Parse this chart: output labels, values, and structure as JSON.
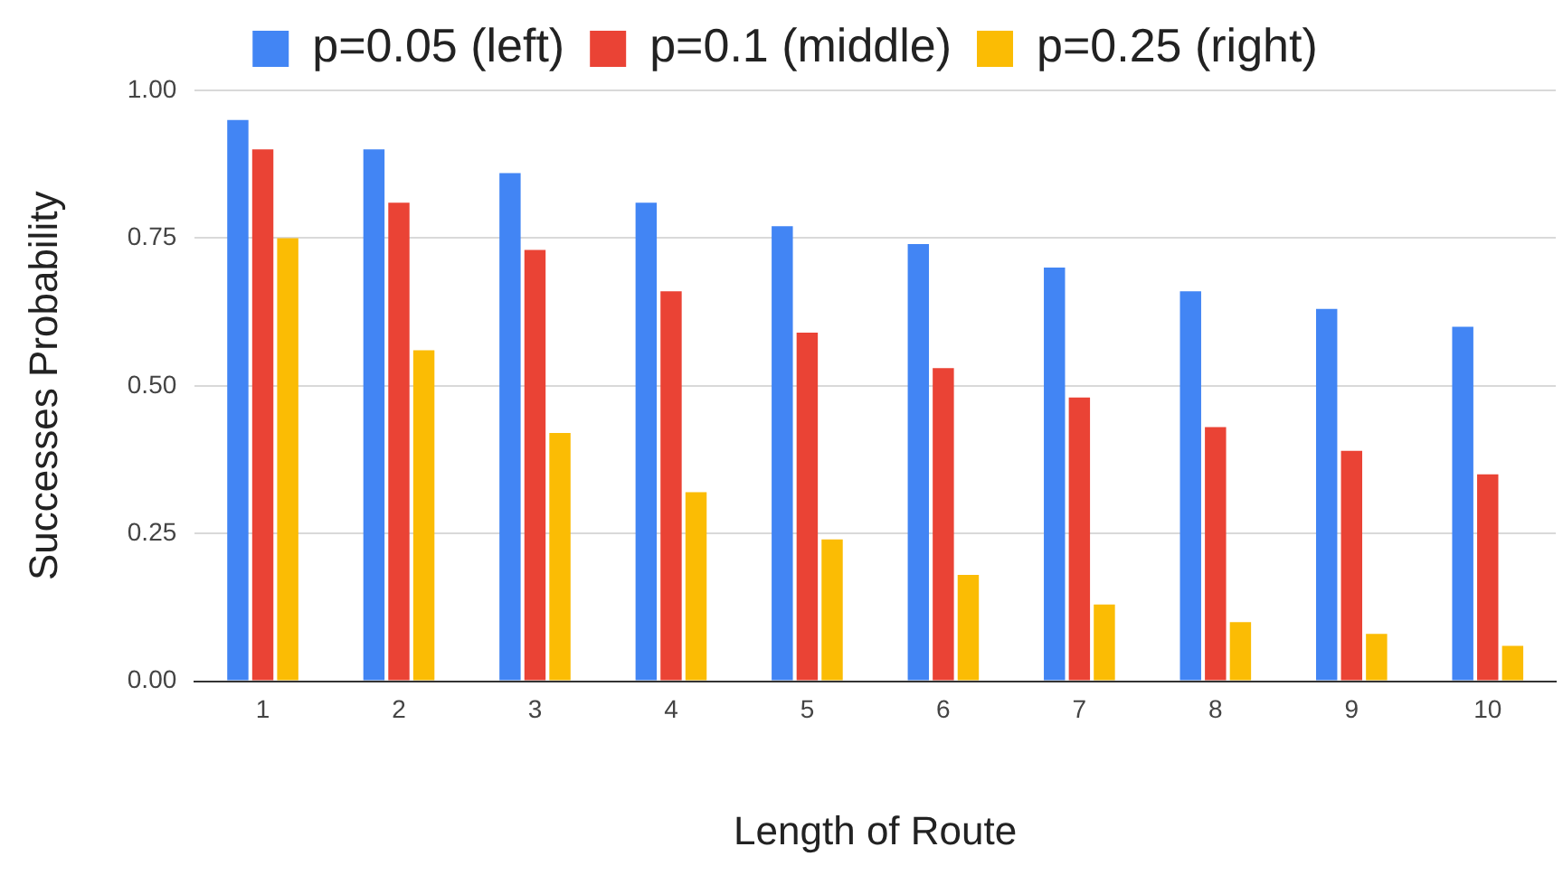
{
  "chart_data": {
    "type": "bar",
    "xlabel": "Length of Route",
    "ylabel": "Successes Probability",
    "categories": [
      "1",
      "2",
      "3",
      "4",
      "5",
      "6",
      "7",
      "8",
      "9",
      "10"
    ],
    "series": [
      {
        "name": "p=0.05 (left)",
        "color": "#4285f4",
        "values": [
          0.95,
          0.9,
          0.86,
          0.81,
          0.77,
          0.74,
          0.7,
          0.66,
          0.63,
          0.6
        ]
      },
      {
        "name": "p=0.1 (middle)",
        "color": "#ea4335",
        "values": [
          0.9,
          0.81,
          0.73,
          0.66,
          0.59,
          0.53,
          0.48,
          0.43,
          0.39,
          0.35
        ]
      },
      {
        "name": "p=0.25 (right)",
        "color": "#fbbc04",
        "values": [
          0.75,
          0.56,
          0.42,
          0.32,
          0.24,
          0.18,
          0.13,
          0.1,
          0.08,
          0.06
        ]
      }
    ],
    "ylim": [
      0,
      1
    ],
    "yticks": [
      {
        "value": 0,
        "label": "0.00"
      },
      {
        "value": 0.25,
        "label": "0.25"
      },
      {
        "value": 0.5,
        "label": "0.50"
      },
      {
        "value": 0.75,
        "label": "0.75"
      },
      {
        "value": 1,
        "label": "1.00"
      }
    ],
    "grid": "y",
    "legend": "top"
  }
}
